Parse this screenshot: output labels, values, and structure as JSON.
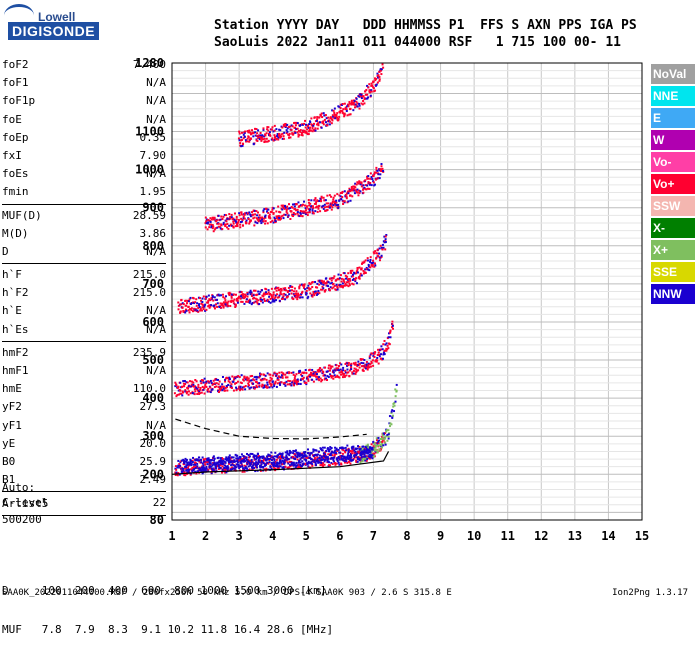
{
  "logo": {
    "top": "Lowell",
    "main": "DIGISONDE"
  },
  "header": {
    "line1": "Station YYYY DAY   DDD HHMMSS P1  FFS S AXN PPS IGA PS",
    "line2": "SaoLuis 2022 Jan11 011 044000 RSF   1 715 100 00- 11"
  },
  "params_group1": [
    {
      "name": "foF2",
      "value": "7.400"
    },
    {
      "name": "foF1",
      "value": "N/A"
    },
    {
      "name": "foF1p",
      "value": "N/A"
    },
    {
      "name": "foE",
      "value": "N/A"
    },
    {
      "name": "foEp",
      "value": "0.35"
    },
    {
      "name": "fxI",
      "value": "7.90"
    },
    {
      "name": "foEs",
      "value": "N/A"
    },
    {
      "name": "fmin",
      "value": "1.95"
    }
  ],
  "params_group2": [
    {
      "name": "MUF(D)",
      "value": "28.59"
    },
    {
      "name": "M(D)",
      "value": "3.86"
    },
    {
      "name": "D",
      "value": "N/A"
    }
  ],
  "params_group3": [
    {
      "name": "h`F",
      "value": "215.0"
    },
    {
      "name": "h`F2",
      "value": "215.0"
    },
    {
      "name": "h`E",
      "value": "N/A"
    },
    {
      "name": "h`Es",
      "value": "N/A"
    }
  ],
  "params_group4": [
    {
      "name": "hmF2",
      "value": "235.9"
    },
    {
      "name": "hmF1",
      "value": "N/A"
    },
    {
      "name": "hmE",
      "value": "110.0"
    },
    {
      "name": "yF2",
      "value": "27.3"
    },
    {
      "name": "yF1",
      "value": "N/A"
    },
    {
      "name": "yE",
      "value": "20.0"
    },
    {
      "name": "B0",
      "value": "25.9"
    },
    {
      "name": "B1",
      "value": "2.49"
    }
  ],
  "params_group5": [
    {
      "name": "C-level",
      "value": "22"
    }
  ],
  "autoscale": {
    "line1": "Auto:",
    "line2": "Artist5",
    "line3": "500200"
  },
  "legend": [
    {
      "label": "NoVal",
      "color": "#a0a0a0"
    },
    {
      "label": "NNE",
      "color": "#00e5ee"
    },
    {
      "label": "E",
      "color": "#3fa9f5"
    },
    {
      "label": "W",
      "color": "#b000b0"
    },
    {
      "label": "Vo-",
      "color": "#ff3fa6"
    },
    {
      "label": "Vo+",
      "color": "#ff0030"
    },
    {
      "label": "SSW",
      "color": "#f4b6b0"
    },
    {
      "label": "X-",
      "color": "#007f00"
    },
    {
      "label": "X+",
      "color": "#7fbf5f"
    },
    {
      "label": "SSE",
      "color": "#d8d800"
    },
    {
      "label": "NNW",
      "color": "#1a00d0"
    }
  ],
  "muf_table": {
    "d_row": "D     100  200  400  600  800 1000 1500 3000 [km]",
    "muf_row": "MUF   7.8  7.9  8.3  9.1 10.2 11.8 16.4 28.6 [MHz]"
  },
  "footer": {
    "left": "SAA0K_2022011044000.RSF / 280fx256h 50 kHz 5.0 km / DPS-4 SAA0K 903 / 2.6 S 315.8 E",
    "right": "Ion2Png 1.3.17"
  },
  "chart_data": {
    "type": "scatter",
    "xlim": [
      1,
      15
    ],
    "ylim": [
      80,
      1280
    ],
    "x_ticks": [
      "1",
      "2",
      "3",
      "4",
      "5",
      "6",
      "7",
      "8",
      "9",
      "10",
      "11",
      "12",
      "13",
      "14",
      "15"
    ],
    "y_ticks": [
      "80",
      "200",
      "300",
      "400",
      "500",
      "600",
      "700",
      "800",
      "900",
      "1000",
      "1100",
      "1280"
    ],
    "grid": true,
    "series": [
      {
        "name": "Vo+",
        "color": "#ff0030",
        "trace": [
          [
            1.1,
            215
          ],
          [
            2,
            222
          ],
          [
            3,
            226
          ],
          [
            4,
            230
          ],
          [
            5,
            236
          ],
          [
            6,
            244
          ],
          [
            6.8,
            255
          ],
          [
            7.2,
            275
          ],
          [
            7.35,
            300
          ]
        ]
      },
      {
        "name": "X+",
        "color": "#7fbf5f",
        "trace": [
          [
            6.6,
            250
          ],
          [
            7,
            265
          ],
          [
            7.4,
            300
          ],
          [
            7.6,
            370
          ],
          [
            7.7,
            440
          ]
        ]
      },
      {
        "name": "NNW",
        "color": "#1a00d0",
        "trace": [
          [
            1.3,
            222
          ],
          [
            2.5,
            230
          ],
          [
            4,
            238
          ],
          [
            5,
            245
          ],
          [
            6,
            255
          ],
          [
            7,
            258
          ]
        ]
      },
      {
        "name": "Vo+",
        "color": "#ff0030",
        "trace": [
          [
            1.1,
            425
          ],
          [
            3,
            440
          ],
          [
            5,
            455
          ],
          [
            6.5,
            480
          ],
          [
            7.2,
            510
          ],
          [
            7.5,
            560
          ],
          [
            7.6,
            600
          ]
        ]
      },
      {
        "name": "Vo+",
        "color": "#ff0030",
        "trace": [
          [
            1.2,
            640
          ],
          [
            3,
            660
          ],
          [
            5,
            680
          ],
          [
            6.5,
            720
          ],
          [
            7.2,
            780
          ],
          [
            7.4,
            820
          ]
        ]
      },
      {
        "name": "Vo+",
        "color": "#ff0030",
        "trace": [
          [
            2,
            855
          ],
          [
            4,
            880
          ],
          [
            6,
            920
          ],
          [
            7,
            975
          ],
          [
            7.3,
            1010
          ]
        ]
      },
      {
        "name": "Vo+",
        "color": "#ff0030",
        "trace": [
          [
            3,
            1080
          ],
          [
            5,
            1110
          ],
          [
            6.5,
            1170
          ],
          [
            7.1,
            1230
          ],
          [
            7.3,
            1280
          ]
        ]
      }
    ],
    "profile_curves": [
      {
        "name": "true-height-lower",
        "trace": [
          [
            1,
            200
          ],
          [
            2,
            206
          ],
          [
            4,
            212
          ],
          [
            6,
            220
          ],
          [
            7.3,
            235
          ],
          [
            7.45,
            260
          ]
        ]
      },
      {
        "name": "true-height-dashed",
        "trace": [
          [
            1.1,
            345
          ],
          [
            2,
            320
          ],
          [
            3,
            300
          ],
          [
            4,
            294
          ],
          [
            5,
            293
          ],
          [
            6,
            298
          ],
          [
            6.8,
            305
          ]
        ]
      }
    ]
  }
}
